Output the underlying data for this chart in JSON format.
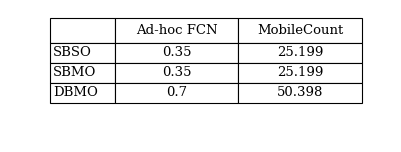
{
  "col_headers": [
    "",
    "Ad-hoc FCN",
    "MobileCount"
  ],
  "rows": [
    [
      "SBSO",
      "0.35",
      "25.199"
    ],
    [
      "SBMO",
      "0.35",
      "25.199"
    ],
    [
      "DBMO",
      "0.7",
      "50.398"
    ]
  ],
  "background_color": "#ffffff",
  "font_size": 9.5,
  "line_width": 0.8
}
